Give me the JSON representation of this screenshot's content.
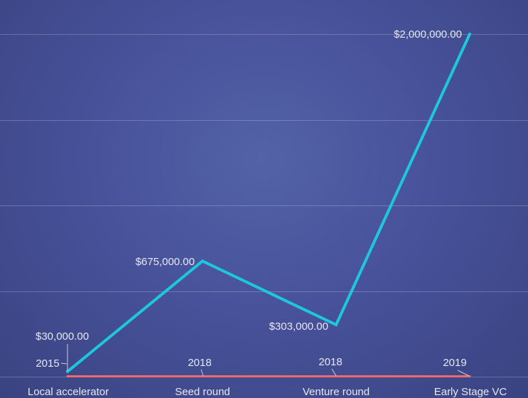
{
  "chart_data": {
    "type": "line",
    "categories": [
      "Local accelerator",
      "Seed round",
      "Venture round",
      "Early Stage VC"
    ],
    "series": [
      {
        "values": [
          30000,
          675000,
          303000,
          2000000
        ],
        "labels": [
          "$30,000.00",
          "$675,000.00",
          "$303,000.00",
          "$2,000,000.00"
        ],
        "color": "#1ec8dc"
      },
      {
        "values": [
          2015,
          2018,
          2018,
          2019
        ],
        "labels": [
          "2015",
          "2018",
          "2018",
          "2019"
        ],
        "color": "#f06a6a"
      }
    ],
    "ylim": [
      0,
      2000000
    ],
    "grid": true,
    "legend": "none"
  }
}
